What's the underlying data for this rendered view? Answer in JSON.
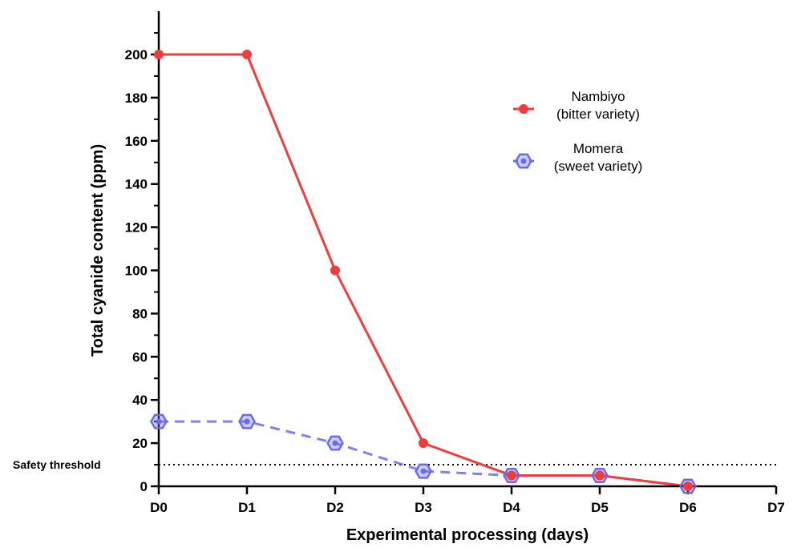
{
  "chart_data": {
    "type": "line",
    "title": "",
    "xlabel": "Experimental processing (days)",
    "ylabel": "Total cyanide content (ppm)",
    "categories": [
      "D0",
      "D1",
      "D2",
      "D3",
      "D4",
      "D5",
      "D6",
      "D7"
    ],
    "ylim": [
      0,
      200
    ],
    "yticks": [
      0,
      20,
      40,
      60,
      80,
      100,
      120,
      140,
      160,
      180,
      200
    ],
    "grid": false,
    "legend_position": "top-right",
    "series": [
      {
        "name": "Nambiyo\n(bitter variety)",
        "legend_lines": [
          "Nambiyo",
          "(bitter variety)"
        ],
        "color": "#f03c3c",
        "line_style": "solid",
        "marker": "circle",
        "values": [
          200,
          200,
          100,
          20,
          5,
          5,
          0,
          null
        ]
      },
      {
        "name": "Momera\n(sweet variety)",
        "legend_lines": [
          "Momera",
          "(sweet variety)"
        ],
        "color": "#6b6bea",
        "line_style": "dashed",
        "marker": "hexagon",
        "values": [
          30,
          30,
          20,
          7,
          5,
          5,
          0,
          null
        ]
      }
    ],
    "reference_lines": [
      {
        "label": "Safety threshold",
        "y": 10,
        "line_style": "dotted",
        "color": "#000000"
      }
    ]
  }
}
